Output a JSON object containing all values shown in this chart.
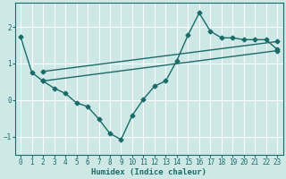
{
  "xlabel": "Humidex (Indice chaleur)",
  "xlim": [
    -0.5,
    23.5
  ],
  "ylim": [
    -1.5,
    2.65
  ],
  "yticks": [
    -1,
    0,
    1,
    2
  ],
  "xticks": [
    0,
    1,
    2,
    3,
    4,
    5,
    6,
    7,
    8,
    9,
    10,
    11,
    12,
    13,
    14,
    15,
    16,
    17,
    18,
    19,
    20,
    21,
    22,
    23
  ],
  "bg_color": "#cde8e5",
  "grid_color": "#ffffff",
  "line_color": "#1a6b6b",
  "line1_x": [
    0,
    1,
    2,
    3,
    4,
    5,
    6,
    7,
    8,
    9,
    10,
    11,
    12,
    13,
    14,
    15,
    16,
    17,
    18,
    19,
    20,
    21,
    22,
    23
  ],
  "line1_y": [
    1.72,
    0.75,
    0.52,
    0.32,
    0.18,
    -0.08,
    -0.18,
    -0.52,
    -0.92,
    -1.08,
    -0.42,
    0.02,
    0.38,
    0.52,
    1.08,
    1.78,
    2.38,
    1.88,
    1.7,
    1.7,
    1.65,
    1.65,
    1.65,
    1.38
  ],
  "line2_x": [
    2,
    23
  ],
  "line2_y": [
    0.52,
    1.35
  ],
  "line3_x": [
    2,
    23
  ],
  "line3_y": [
    0.78,
    1.6
  ],
  "marker": "D",
  "markersize": 2.5,
  "linewidth": 1.0,
  "tick_fontsize": 5.5,
  "xlabel_fontsize": 6.5
}
